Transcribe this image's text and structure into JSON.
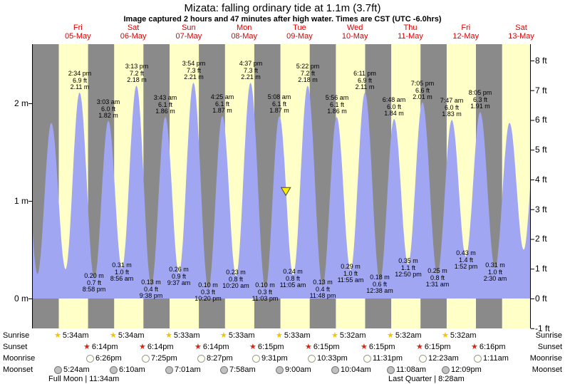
{
  "header": {
    "title": "Mizata: falling ordinary tide at 1.1m (3.7ft)",
    "subtitle": "Image captured 2 hours and 47 minutes after high water. Times are CST (UTC -6.0hrs)"
  },
  "days": [
    {
      "name": "Fri",
      "date": "05-May"
    },
    {
      "name": "Sat",
      "date": "06-May"
    },
    {
      "name": "Sun",
      "date": "07-May"
    },
    {
      "name": "Mon",
      "date": "08-May"
    },
    {
      "name": "Tue",
      "date": "09-May"
    },
    {
      "name": "Wed",
      "date": "10-May"
    },
    {
      "name": "Thu",
      "date": "11-May"
    },
    {
      "name": "Fri",
      "date": "12-May"
    },
    {
      "name": "Sat",
      "date": "13-May"
    }
  ],
  "axes": {
    "left": [
      {
        "m": 2,
        "label": "2 m"
      },
      {
        "m": 1,
        "label": "1 m"
      },
      {
        "m": 0,
        "label": "0 m"
      }
    ],
    "right": [
      {
        "ft": 8,
        "label": "8 ft"
      },
      {
        "ft": 7,
        "label": "7 ft"
      },
      {
        "ft": 6,
        "label": "6 ft"
      },
      {
        "ft": 5,
        "label": "5 ft"
      },
      {
        "ft": 4,
        "label": "4 ft"
      },
      {
        "ft": 3,
        "label": "3 ft"
      },
      {
        "ft": 2,
        "label": "2 ft"
      },
      {
        "ft": 1,
        "label": "1 ft"
      },
      {
        "ft": 0,
        "label": "0 ft"
      },
      {
        "ft": -1,
        "label": "-1 ft"
      }
    ]
  },
  "chart_data": {
    "type": "area",
    "series_name": "tide height",
    "title": "Mizata: falling ordinary tide at 1.1m (3.7ft)",
    "y_left": {
      "unit": "m",
      "ticks": [
        0,
        1,
        2
      ]
    },
    "y_right": {
      "unit": "ft",
      "ticks": [
        -1,
        0,
        1,
        2,
        3,
        4,
        5,
        6,
        7,
        8
      ]
    },
    "daylight": {
      "sunrise_h": 5.56,
      "sunset_h": 18.24
    },
    "colors": {
      "day_band": "#ffffc8",
      "night_band": "#8a8a8a",
      "tide_fill": "#a0a6f2",
      "marker_fill": "#ffee00",
      "marker_stroke": "#444444",
      "day_label": "#dd0000",
      "axis": "#000000"
    },
    "current_marker": {
      "day": 4,
      "time": "7:55 am",
      "m": 1.1
    },
    "tide_events": [
      {
        "day": -1,
        "time": "2:05 pm",
        "m": 2.05,
        "kind": "high",
        "annotated": false
      },
      {
        "day": -1,
        "time": "8:20 pm",
        "m": 0.25,
        "kind": "low",
        "annotated": false
      },
      {
        "day": 0,
        "time": "2:20 am",
        "m": 1.8,
        "kind": "high",
        "annotated": false
      },
      {
        "day": 0,
        "time": "8:30 am",
        "m": 0.3,
        "kind": "low",
        "annotated": false
      },
      {
        "day": 0,
        "time": "2:34 pm",
        "m": 2.11,
        "kind": "high",
        "annotated": true,
        "ft_label": "6.9 ft",
        "m_label": "2.11 m"
      },
      {
        "day": 0,
        "time": "8:58 pm",
        "m": 0.2,
        "kind": "low",
        "annotated": true,
        "ft_label": "0.7 ft",
        "m_label": "0.20 m"
      },
      {
        "day": 1,
        "time": "3:03 am",
        "m": 1.82,
        "kind": "high",
        "annotated": true,
        "ft_label": "6.0 ft",
        "m_label": "1.82 m"
      },
      {
        "day": 1,
        "time": "8:56 am",
        "m": 0.31,
        "kind": "low",
        "annotated": true,
        "ft_label": "1.0 ft",
        "m_label": "0.31 m"
      },
      {
        "day": 1,
        "time": "3:13 pm",
        "m": 2.18,
        "kind": "high",
        "annotated": true,
        "ft_label": "7.2 ft",
        "m_label": "2.18 m"
      },
      {
        "day": 1,
        "time": "9:38 pm",
        "m": 0.13,
        "kind": "low",
        "annotated": true,
        "ft_label": "0.4 ft",
        "m_label": "0.13 m"
      },
      {
        "day": 2,
        "time": "3:43 am",
        "m": 1.86,
        "kind": "high",
        "annotated": true,
        "ft_label": "6.1 ft",
        "m_label": "1.86 m"
      },
      {
        "day": 2,
        "time": "9:37 am",
        "m": 0.26,
        "kind": "low",
        "annotated": true,
        "ft_label": "0.9 ft",
        "m_label": "0.26 m"
      },
      {
        "day": 2,
        "time": "3:54 pm",
        "m": 2.21,
        "kind": "high",
        "annotated": true,
        "ft_label": "7.3 ft",
        "m_label": "2.21 m"
      },
      {
        "day": 2,
        "time": "10:20 pm",
        "m": 0.1,
        "kind": "low",
        "annotated": true,
        "ft_label": "0.3 ft",
        "m_label": "0.10 m"
      },
      {
        "day": 3,
        "time": "4:25 am",
        "m": 1.87,
        "kind": "high",
        "annotated": true,
        "ft_label": "6.1 ft",
        "m_label": "1.87 m"
      },
      {
        "day": 3,
        "time": "10:20 am",
        "m": 0.23,
        "kind": "low",
        "annotated": true,
        "ft_label": "0.8 ft",
        "m_label": "0.23 m"
      },
      {
        "day": 3,
        "time": "4:37 pm",
        "m": 2.21,
        "kind": "high",
        "annotated": true,
        "ft_label": "7.3 ft",
        "m_label": "2.21 m"
      },
      {
        "day": 3,
        "time": "11:03 pm",
        "m": 0.1,
        "kind": "low",
        "annotated": true,
        "ft_label": "0.3 ft",
        "m_label": "0.10 m"
      },
      {
        "day": 4,
        "time": "5:08 am",
        "m": 1.87,
        "kind": "high",
        "annotated": true,
        "ft_label": "6.1 ft",
        "m_label": "1.87 m"
      },
      {
        "day": 4,
        "time": "11:05 am",
        "m": 0.24,
        "kind": "low",
        "annotated": true,
        "ft_label": "0.8 ft",
        "m_label": "0.24 m"
      },
      {
        "day": 4,
        "time": "5:22 pm",
        "m": 2.18,
        "kind": "high",
        "annotated": true,
        "ft_label": "7.2 ft",
        "m_label": "2.18 m"
      },
      {
        "day": 4,
        "time": "11:48 pm",
        "m": 0.13,
        "kind": "low",
        "annotated": true,
        "ft_label": "0.4 ft",
        "m_label": "0.13 m"
      },
      {
        "day": 5,
        "time": "5:56 am",
        "m": 1.86,
        "kind": "high",
        "annotated": true,
        "ft_label": "6.1 ft",
        "m_label": "1.86 m"
      },
      {
        "day": 5,
        "time": "11:55 am",
        "m": 0.29,
        "kind": "low",
        "annotated": true,
        "ft_label": "1.0 ft",
        "m_label": "0.29 m"
      },
      {
        "day": 5,
        "time": "6:11 pm",
        "m": 2.11,
        "kind": "high",
        "annotated": true,
        "ft_label": "6.9 ft",
        "m_label": "2.11 m"
      },
      {
        "day": 6,
        "time": "12:38 am",
        "m": 0.18,
        "kind": "low",
        "annotated": true,
        "ft_label": "0.6 ft",
        "m_label": "0.18 m"
      },
      {
        "day": 6,
        "time": "6:48 am",
        "m": 1.84,
        "kind": "high",
        "annotated": true,
        "ft_label": "6.0 ft",
        "m_label": "1.84 m"
      },
      {
        "day": 6,
        "time": "12:50 pm",
        "m": 0.35,
        "kind": "low",
        "annotated": true,
        "ft_label": "1.1 ft",
        "m_label": "0.35 m"
      },
      {
        "day": 6,
        "time": "7:05 pm",
        "m": 2.01,
        "kind": "high",
        "annotated": true,
        "ft_label": "6.6 ft",
        "m_label": "2.01 m"
      },
      {
        "day": 7,
        "time": "1:31 am",
        "m": 0.25,
        "kind": "low",
        "annotated": true,
        "ft_label": "0.8 ft",
        "m_label": "0.25 m"
      },
      {
        "day": 7,
        "time": "7:47 am",
        "m": 1.83,
        "kind": "high",
        "annotated": true,
        "ft_label": "6.0 ft",
        "m_label": "1.83 m"
      },
      {
        "day": 7,
        "time": "1:52 pm",
        "m": 0.43,
        "kind": "low",
        "annotated": true,
        "ft_label": "1.4 ft",
        "m_label": "0.43 m"
      },
      {
        "day": 7,
        "time": "8:05 pm",
        "m": 1.91,
        "kind": "high",
        "annotated": true,
        "ft_label": "6.3 ft",
        "m_label": "1.91 m"
      },
      {
        "day": 8,
        "time": "2:30 am",
        "m": 0.31,
        "kind": "low",
        "annotated": true,
        "ft_label": "1.0 ft",
        "m_label": "0.31 m"
      },
      {
        "day": 8,
        "time": "8:47 am",
        "m": 1.8,
        "kind": "high",
        "annotated": false
      },
      {
        "day": 8,
        "time": "2:55 pm",
        "m": 0.5,
        "kind": "low",
        "annotated": false
      },
      {
        "day": 8,
        "time": "8:50 pm",
        "m": 1.9,
        "kind": "high",
        "annotated": false
      }
    ]
  },
  "astro": {
    "icon_colors": {
      "sunrise_star": "#f0c400",
      "sunset_star": "#dd2211",
      "moonrise": {
        "fill": "#fffff2",
        "border": "#999999"
      },
      "moonset": {
        "fill": "#c0c0c0",
        "border": "#777777"
      }
    },
    "rows": [
      {
        "id": "sunrise",
        "label": "Sunrise",
        "icon": "sunrise-star-icon",
        "times": [
          "5:34am",
          "5:34am",
          "5:33am",
          "5:33am",
          "5:33am",
          "5:32am",
          "5:32am",
          "5:32am"
        ]
      },
      {
        "id": "sunset",
        "label": "Sunset",
        "icon": "sunset-star-icon",
        "times": [
          "6:14pm",
          "6:14pm",
          "6:14pm",
          "6:15pm",
          "6:15pm",
          "6:15pm",
          "6:15pm",
          "6:16pm"
        ]
      },
      {
        "id": "moonrise",
        "label": "Moonrise",
        "icon": "moonrise-icon",
        "times": [
          "6:26pm",
          "7:25pm",
          "8:27pm",
          "9:31pm",
          "10:33pm",
          "11:31pm",
          "12:23am",
          "1:11am"
        ]
      },
      {
        "id": "moonset",
        "label": "Moonset",
        "icon": "moonset-icon",
        "times": [
          "5:24am",
          "6:10am",
          "7:01am",
          "7:58am",
          "9:00am",
          "10:04am",
          "11:08am",
          "12:09pm"
        ]
      }
    ],
    "phases": [
      {
        "text": "Full Moon | 11:34am"
      },
      {
        "text": "Last Quarter | 8:28am"
      }
    ]
  }
}
